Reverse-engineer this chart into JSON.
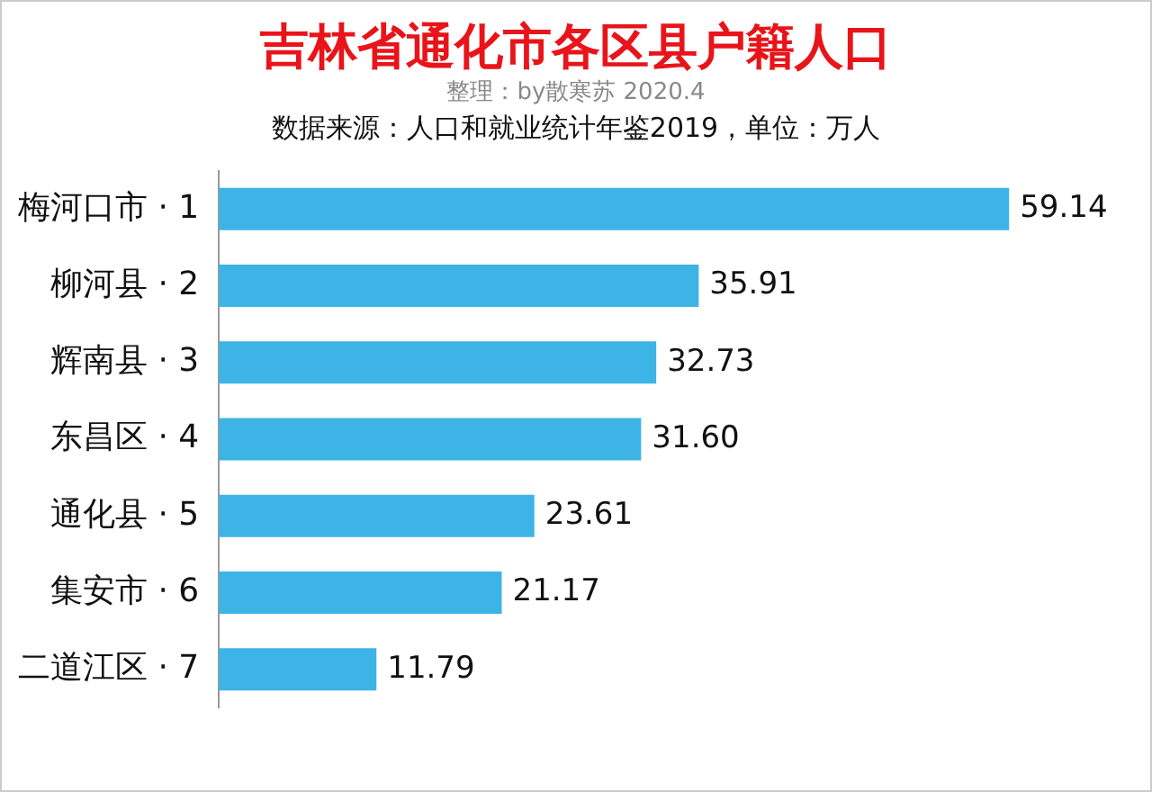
{
  "chart_data": {
    "type": "bar",
    "orientation": "horizontal",
    "title": "吉林省通化市各区县户籍人口",
    "subtitle": "整理：by散寒苏 2020.4",
    "annotations": [
      "数据来源：人口和就业统计年鉴2019，单位：万人"
    ],
    "categories": [
      "梅河口市 · 1",
      "柳河县 · 2",
      "辉南县 · 3",
      "东昌区 · 4",
      "通化县 · 5",
      "集安市 · 6",
      "二道江区 · 7"
    ],
    "values": [
      59.14,
      35.91,
      32.73,
      31.6,
      23.61,
      21.17,
      11.79
    ],
    "value_labels": [
      "59.14",
      "35.91",
      "32.73",
      "31.60",
      "23.61",
      "21.17",
      "11.79"
    ],
    "color": "#3db4e6",
    "legend": false
  }
}
